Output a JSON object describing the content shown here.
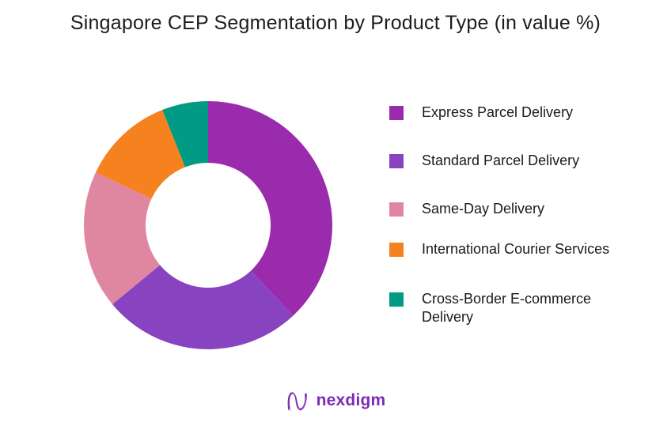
{
  "chart_data": {
    "type": "pie",
    "subtype": "donut",
    "title": "Singapore CEP Segmentation by Product Type (in value %)",
    "labels": [
      "Express Parcel Delivery",
      "Standard Parcel Delivery",
      "Same-Day Delivery",
      "International Courier Services",
      "Cross-Border E-commerce Delivery"
    ],
    "values": [
      38,
      26,
      18,
      12,
      6
    ],
    "unit": "percent of value",
    "colors": [
      "#9a2bad",
      "#8844c0",
      "#df87a1",
      "#f5821f",
      "#009b85"
    ],
    "start_angle_deg": 0,
    "direction": "clockwise",
    "hole_ratio": 0.5,
    "legend_position": "right",
    "data_labels_shown": false
  },
  "footer": {
    "logo_text": "nexdigm",
    "logo_color": "#7d2ab8"
  }
}
